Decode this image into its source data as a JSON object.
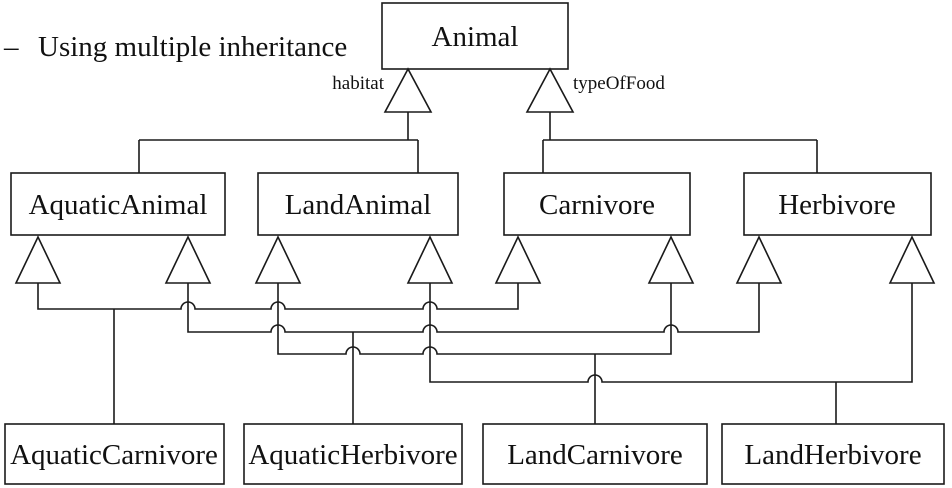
{
  "heading": {
    "dash": "–",
    "text": "Using multiple inheritance"
  },
  "root": {
    "name": "Animal"
  },
  "discriminators": {
    "left": "habitat",
    "right": "typeOfFood"
  },
  "level1": [
    "AquaticAnimal",
    "LandAnimal",
    "Carnivore",
    "Herbivore"
  ],
  "level2": [
    "AquaticCarnivore",
    "AquaticHerbivore",
    "LandCarnivore",
    "LandHerbivore"
  ]
}
